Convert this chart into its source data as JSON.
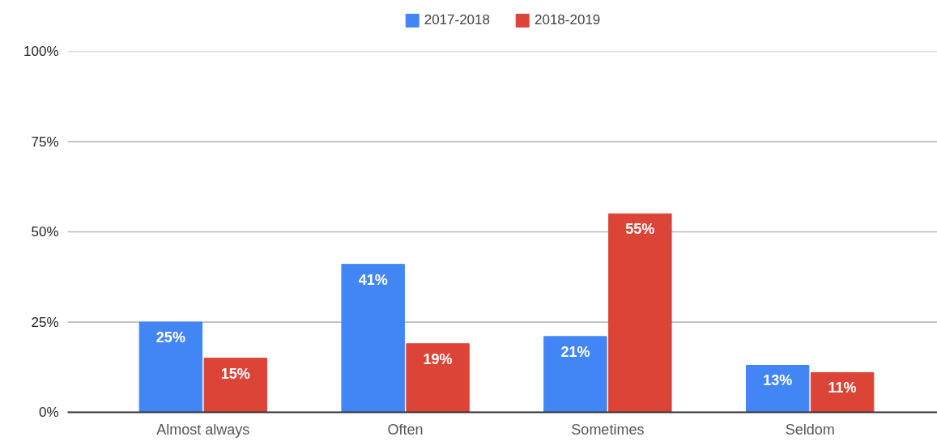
{
  "chart_data": {
    "type": "bar",
    "categories": [
      "Almost always",
      "Often",
      "Sometimes",
      "Seldom"
    ],
    "series": [
      {
        "name": "2017-2018",
        "color": "#4285f4",
        "values": [
          25,
          41,
          21,
          13
        ],
        "value_labels": [
          "25%",
          "41%",
          "21%",
          "13%"
        ]
      },
      {
        "name": "2018-2019",
        "color": "#db4437",
        "values": [
          15,
          19,
          55,
          11
        ],
        "value_labels": [
          "15%",
          "19%",
          "55%",
          "11%"
        ]
      }
    ],
    "ylim": [
      0,
      100
    ],
    "yticks": [
      {
        "value": 0,
        "label": "0%"
      },
      {
        "value": 25,
        "label": "25%"
      },
      {
        "value": 50,
        "label": "50%"
      },
      {
        "value": 75,
        "label": "75%"
      },
      {
        "value": 100,
        "label": "100%"
      }
    ],
    "grid": "y",
    "legend": "top"
  }
}
